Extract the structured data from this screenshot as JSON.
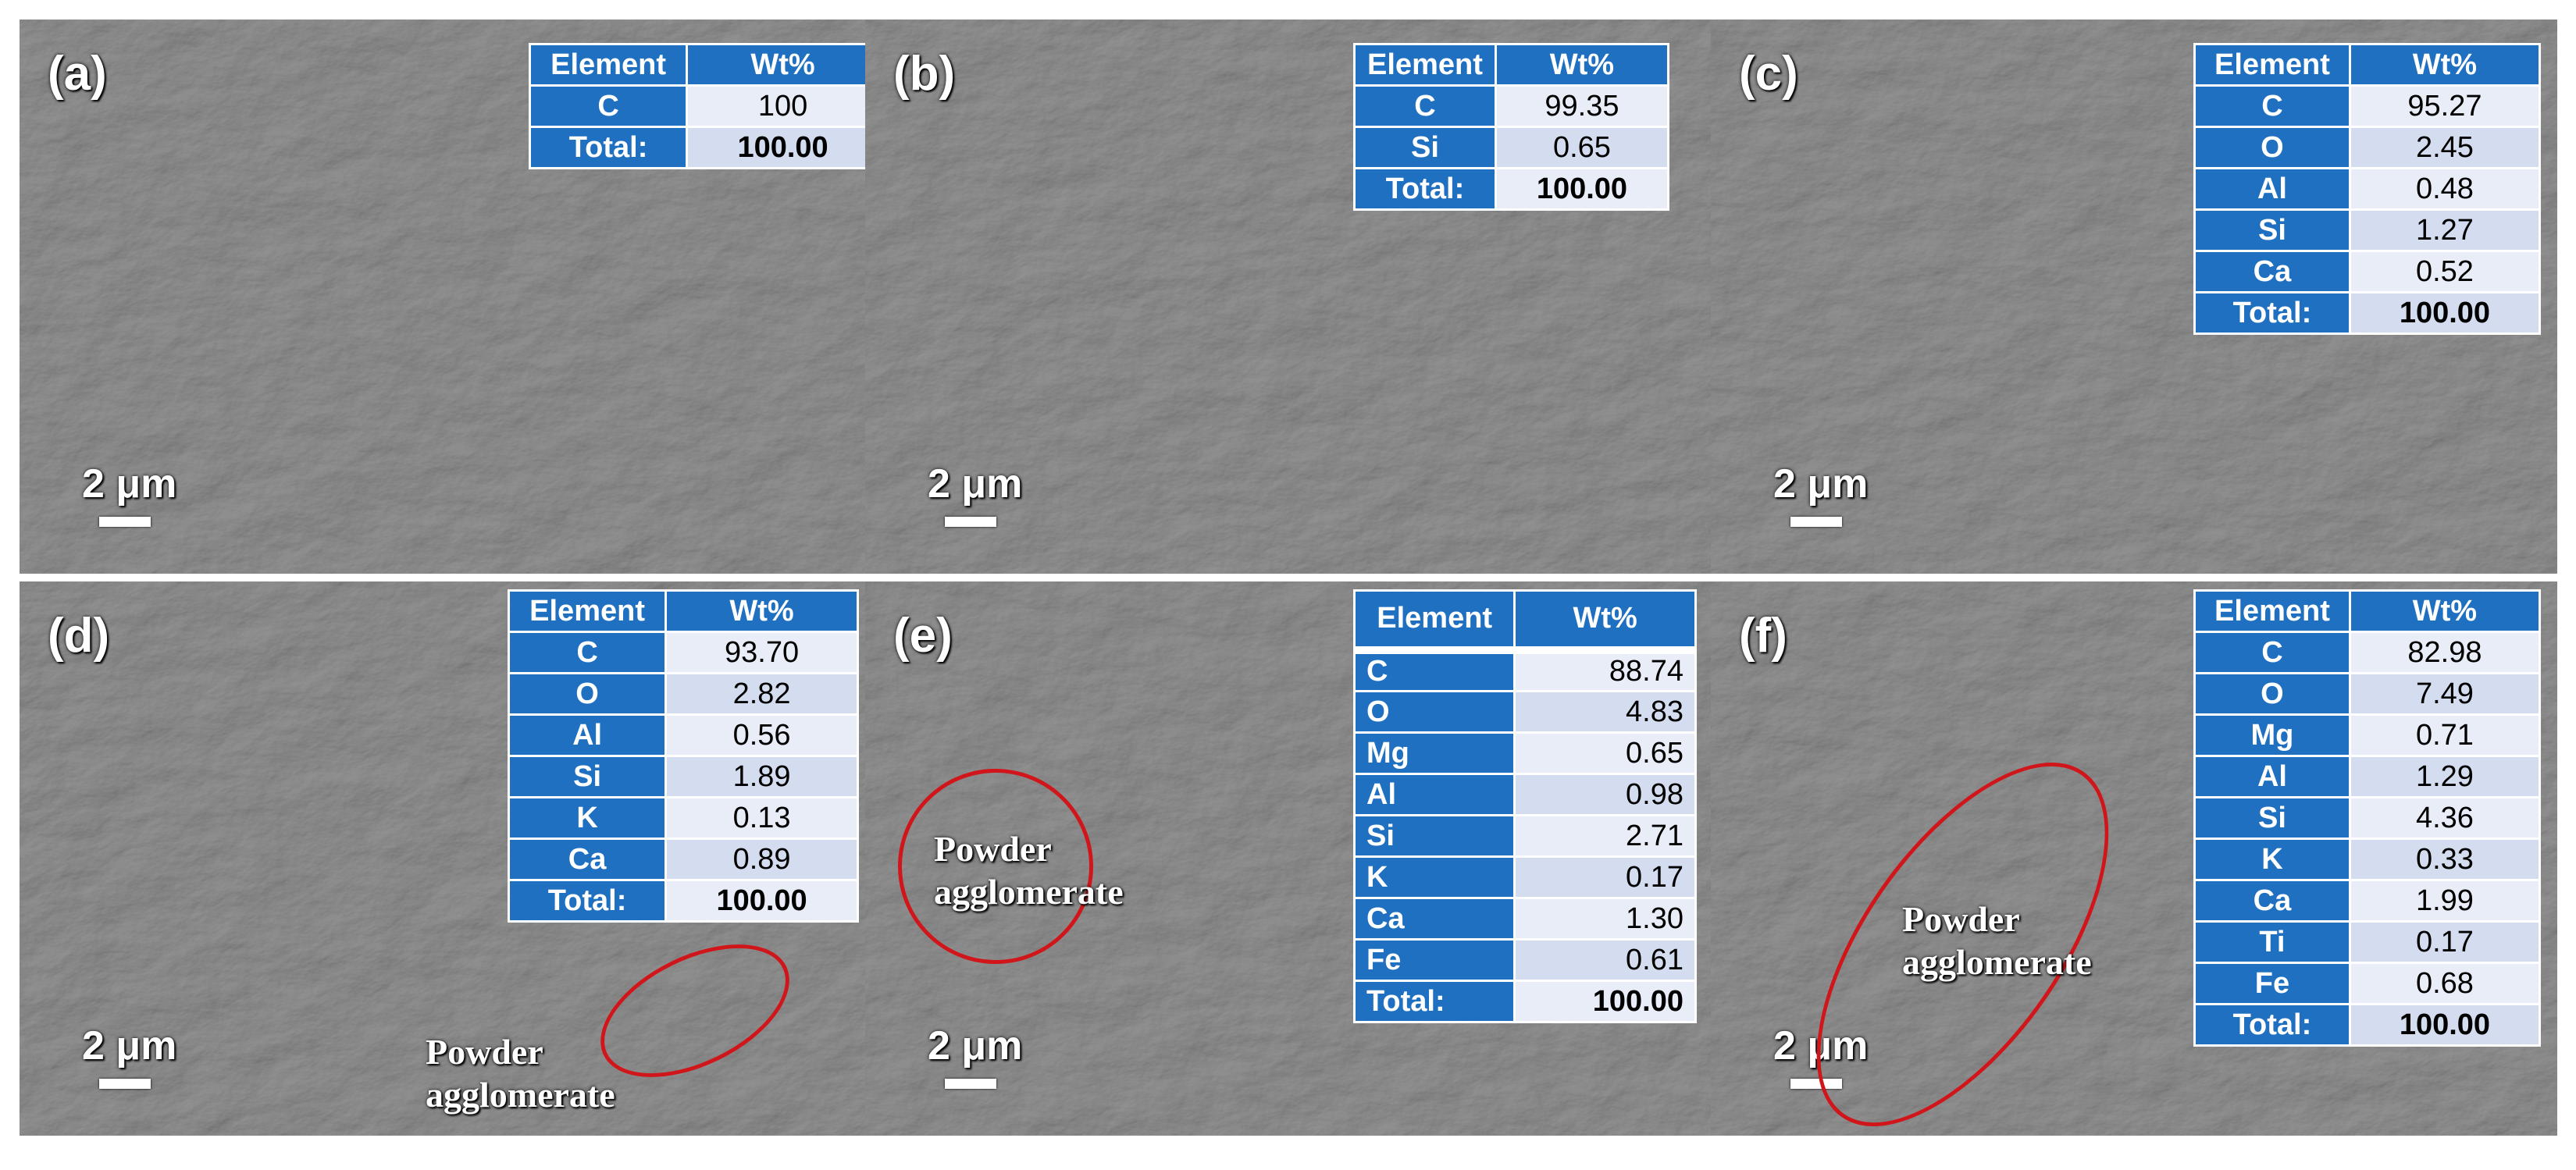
{
  "table_header": {
    "element": "Element",
    "wt": "Wt%"
  },
  "scale_text": "2 μm",
  "annotation": {
    "line1": "Powder",
    "line2": "agglomerate"
  },
  "panels": [
    {
      "label": "(a)",
      "rows": [
        {
          "el": "C",
          "wt": "100"
        },
        {
          "el": "Total:",
          "wt": "100.00"
        }
      ]
    },
    {
      "label": "(b)",
      "rows": [
        {
          "el": "C",
          "wt": "99.35"
        },
        {
          "el": "Si",
          "wt": "0.65"
        },
        {
          "el": "Total:",
          "wt": "100.00"
        }
      ]
    },
    {
      "label": "(c)",
      "rows": [
        {
          "el": "C",
          "wt": "95.27"
        },
        {
          "el": "O",
          "wt": "2.45"
        },
        {
          "el": "Al",
          "wt": "0.48"
        },
        {
          "el": "Si",
          "wt": "1.27"
        },
        {
          "el": "Ca",
          "wt": "0.52"
        },
        {
          "el": "Total:",
          "wt": "100.00"
        }
      ]
    },
    {
      "label": "(d)",
      "rows": [
        {
          "el": "C",
          "wt": "93.70"
        },
        {
          "el": "O",
          "wt": "2.82"
        },
        {
          "el": "Al",
          "wt": "0.56"
        },
        {
          "el": "Si",
          "wt": "1.89"
        },
        {
          "el": "K",
          "wt": "0.13"
        },
        {
          "el": "Ca",
          "wt": "0.89"
        },
        {
          "el": "Total:",
          "wt": "100.00"
        }
      ]
    },
    {
      "label": "(e)",
      "rows": [
        {
          "el": "C",
          "wt": "88.74"
        },
        {
          "el": "O",
          "wt": "4.83"
        },
        {
          "el": "Mg",
          "wt": "0.65"
        },
        {
          "el": "Al",
          "wt": "0.98"
        },
        {
          "el": "Si",
          "wt": "2.71"
        },
        {
          "el": "K",
          "wt": "0.17"
        },
        {
          "el": "Ca",
          "wt": "1.30"
        },
        {
          "el": "Fe",
          "wt": "0.61"
        },
        {
          "el": "Total:",
          "wt": "100.00"
        }
      ]
    },
    {
      "label": "(f)",
      "rows": [
        {
          "el": "C",
          "wt": "82.98"
        },
        {
          "el": "O",
          "wt": "7.49"
        },
        {
          "el": "Mg",
          "wt": "0.71"
        },
        {
          "el": "Al",
          "wt": "1.29"
        },
        {
          "el": "Si",
          "wt": "4.36"
        },
        {
          "el": "K",
          "wt": "0.33"
        },
        {
          "el": "Ca",
          "wt": "1.99"
        },
        {
          "el": "Ti",
          "wt": "0.17"
        },
        {
          "el": "Fe",
          "wt": "0.68"
        },
        {
          "el": "Total:",
          "wt": "100.00"
        }
      ]
    }
  ],
  "colors": {
    "header_blue": "#1f70c1",
    "cell_light": "#d4dcf0",
    "ellipse_red": "#d0161a"
  }
}
